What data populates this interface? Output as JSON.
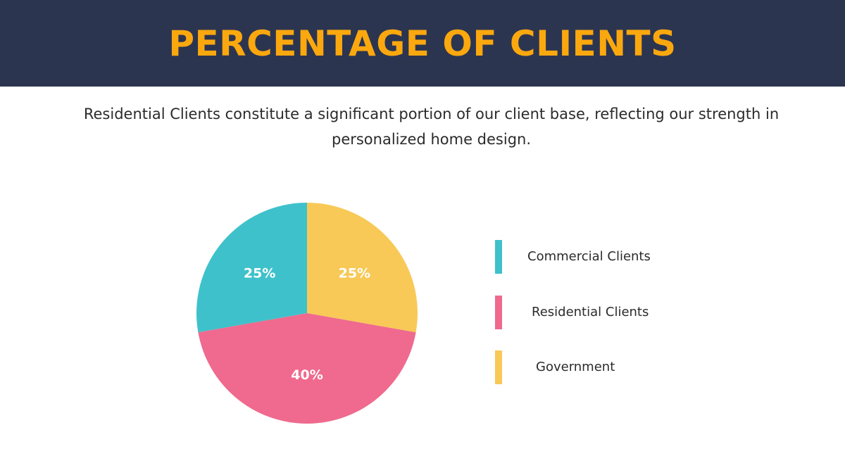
{
  "header": {
    "title": "PERCENTAGE OF CLIENTS"
  },
  "subtitle": "Residential Clients constitute a significant portion of our client base, reflecting our strength in personalized home design.",
  "colors": {
    "header_bg": "#2c3550",
    "title": "#fba80f",
    "commercial": "#3ec1cb",
    "residential": "#ef6a8e",
    "government": "#f8c957"
  },
  "chart_data": {
    "type": "pie",
    "slices": [
      {
        "label": "Government",
        "value": 25,
        "display": "25%",
        "color": "#f8c957"
      },
      {
        "label": "Residential Clients",
        "value": 40,
        "display": "40%",
        "color": "#ef6a8e"
      },
      {
        "label": "Commercial Clients",
        "value": 25,
        "display": "25%",
        "color": "#3ec1cb"
      }
    ],
    "legend": [
      {
        "label": "Commercial Clients",
        "color": "#3ec1cb"
      },
      {
        "label": "Residential Clients",
        "color": "#ef6a8e"
      },
      {
        "label": "Government",
        "color": "#f8c957"
      }
    ],
    "legend_position": "right"
  }
}
